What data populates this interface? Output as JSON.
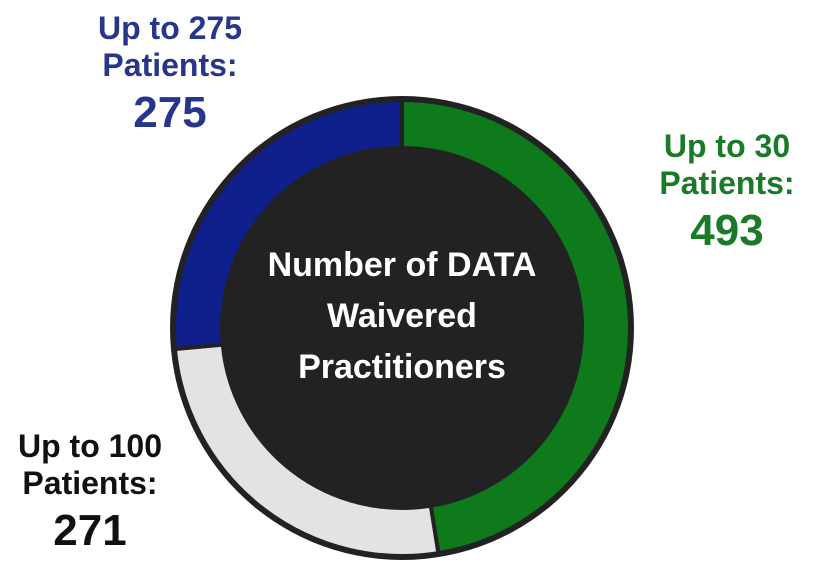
{
  "chart_data": {
    "type": "donut",
    "title": "Number of DATA Waivered Practitioners",
    "categories": [
      "Up to 30 Patients:",
      "Up to 100 Patients:",
      "Up to 275 Patients:"
    ],
    "values": [
      493,
      271,
      275
    ],
    "colors": [
      "#0e7a1c",
      "#e3e3e3",
      "#0f1f8c"
    ],
    "label_colors": [
      "#197a27",
      "#111111",
      "#27358a"
    ]
  }
}
